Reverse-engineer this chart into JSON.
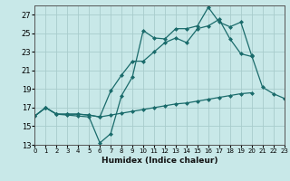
{
  "background_color": "#c8e8e8",
  "grid_color": "#a8cccc",
  "line_color": "#1a6b6b",
  "marker": "D",
  "marker_size": 2.0,
  "line_width": 0.9,
  "xlabel": "Humidex (Indice chaleur)",
  "xlim": [
    0,
    23
  ],
  "ylim": [
    13,
    28
  ],
  "yticks": [
    13,
    15,
    17,
    19,
    21,
    23,
    25,
    27
  ],
  "xticks": [
    0,
    1,
    2,
    3,
    4,
    5,
    6,
    7,
    8,
    9,
    10,
    11,
    12,
    13,
    14,
    15,
    16,
    17,
    18,
    19,
    20,
    21,
    22,
    23
  ],
  "line1_x": [
    0,
    1,
    2,
    3,
    4,
    5,
    6,
    7,
    8,
    9,
    10,
    11,
    12,
    13,
    14,
    15,
    16,
    17,
    18,
    19,
    20,
    21,
    22,
    23
  ],
  "line1_y": [
    16.1,
    17.0,
    16.3,
    16.2,
    16.1,
    16.0,
    13.2,
    14.2,
    18.3,
    20.3,
    25.3,
    24.5,
    24.4,
    25.5,
    25.5,
    25.8,
    27.8,
    26.2,
    25.7,
    26.2,
    22.6,
    19.2,
    18.5,
    18.0
  ],
  "line2_x": [
    0,
    1,
    2,
    3,
    4,
    5,
    6,
    7,
    8,
    9,
    10,
    11,
    12,
    13,
    14,
    15,
    16,
    17,
    18,
    19,
    20,
    21,
    22,
    23
  ],
  "line2_y": [
    16.1,
    17.0,
    16.3,
    16.3,
    16.3,
    16.2,
    16.0,
    18.8,
    20.5,
    22.0,
    22.0,
    23.0,
    24.0,
    24.5,
    24.0,
    25.5,
    25.8,
    26.5,
    24.4,
    22.8,
    22.5,
    null,
    null,
    null
  ],
  "line3_x": [
    0,
    1,
    2,
    3,
    4,
    5,
    6,
    7,
    8,
    9,
    10,
    11,
    12,
    13,
    14,
    15,
    16,
    17,
    18,
    19,
    20,
    21,
    22,
    23
  ],
  "line3_y": [
    16.1,
    17.0,
    16.3,
    16.3,
    16.3,
    16.2,
    16.0,
    16.2,
    16.4,
    16.6,
    16.8,
    17.0,
    17.2,
    17.4,
    17.5,
    17.7,
    17.9,
    18.1,
    18.3,
    18.5,
    18.6,
    null,
    null,
    null
  ]
}
